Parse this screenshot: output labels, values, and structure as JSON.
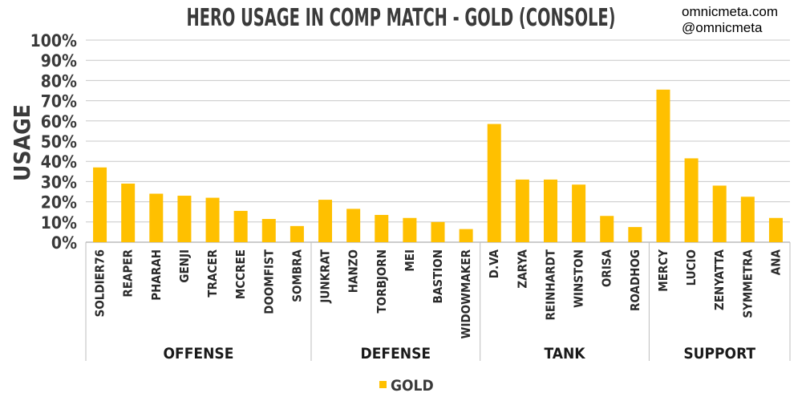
{
  "credits": {
    "site": "omnicmeta.com",
    "handle": "@omnicmeta"
  },
  "chart_data": {
    "type": "bar",
    "title": "HERO USAGE IN COMP MATCH - GOLD (CONSOLE)",
    "xlabel": "",
    "ylabel": "USAGE",
    "ylim": [
      0,
      100
    ],
    "y_ticks": [
      "0%",
      "10%",
      "20%",
      "30%",
      "40%",
      "50%",
      "60%",
      "70%",
      "80%",
      "90%",
      "100%"
    ],
    "grid": true,
    "legend_position": "bottom",
    "bar_color": "#FFC000",
    "groups": [
      {
        "name": "OFFENSE",
        "categories": [
          "SOLDIER76",
          "REAPER",
          "PHARAH",
          "GENJI",
          "TRACER",
          "MCCREE",
          "DOOMFIST",
          "SOMBRA"
        ]
      },
      {
        "name": "DEFENSE",
        "categories": [
          "JUNKRAT",
          "HANZO",
          "TORBJORN",
          "MEI",
          "BASTION",
          "WIDOWMAKER"
        ]
      },
      {
        "name": "TANK",
        "categories": [
          "D.VA",
          "ZARYA",
          "REINHARDT",
          "WINSTON",
          "ORISA",
          "ROADHOG"
        ]
      },
      {
        "name": "SUPPORT",
        "categories": [
          "MERCY",
          "LUCIO",
          "ZENYATTA",
          "SYMMETRA",
          "ANA"
        ]
      }
    ],
    "categories": [
      "SOLDIER76",
      "REAPER",
      "PHARAH",
      "GENJI",
      "TRACER",
      "MCCREE",
      "DOOMFIST",
      "SOMBRA",
      "JUNKRAT",
      "HANZO",
      "TORBJORN",
      "MEI",
      "BASTION",
      "WIDOWMAKER",
      "D.VA",
      "ZARYA",
      "REINHARDT",
      "WINSTON",
      "ORISA",
      "ROADHOG",
      "MERCY",
      "LUCIO",
      "ZENYATTA",
      "SYMMETRA",
      "ANA"
    ],
    "series": [
      {
        "name": "GOLD",
        "values": [
          37,
          29,
          24,
          23,
          22,
          15.5,
          11.5,
          8,
          21,
          16.5,
          13.5,
          12,
          10,
          6.5,
          58.5,
          31,
          31,
          28.5,
          13,
          7.5,
          75.5,
          41.5,
          28,
          22.5,
          12
        ]
      }
    ]
  }
}
